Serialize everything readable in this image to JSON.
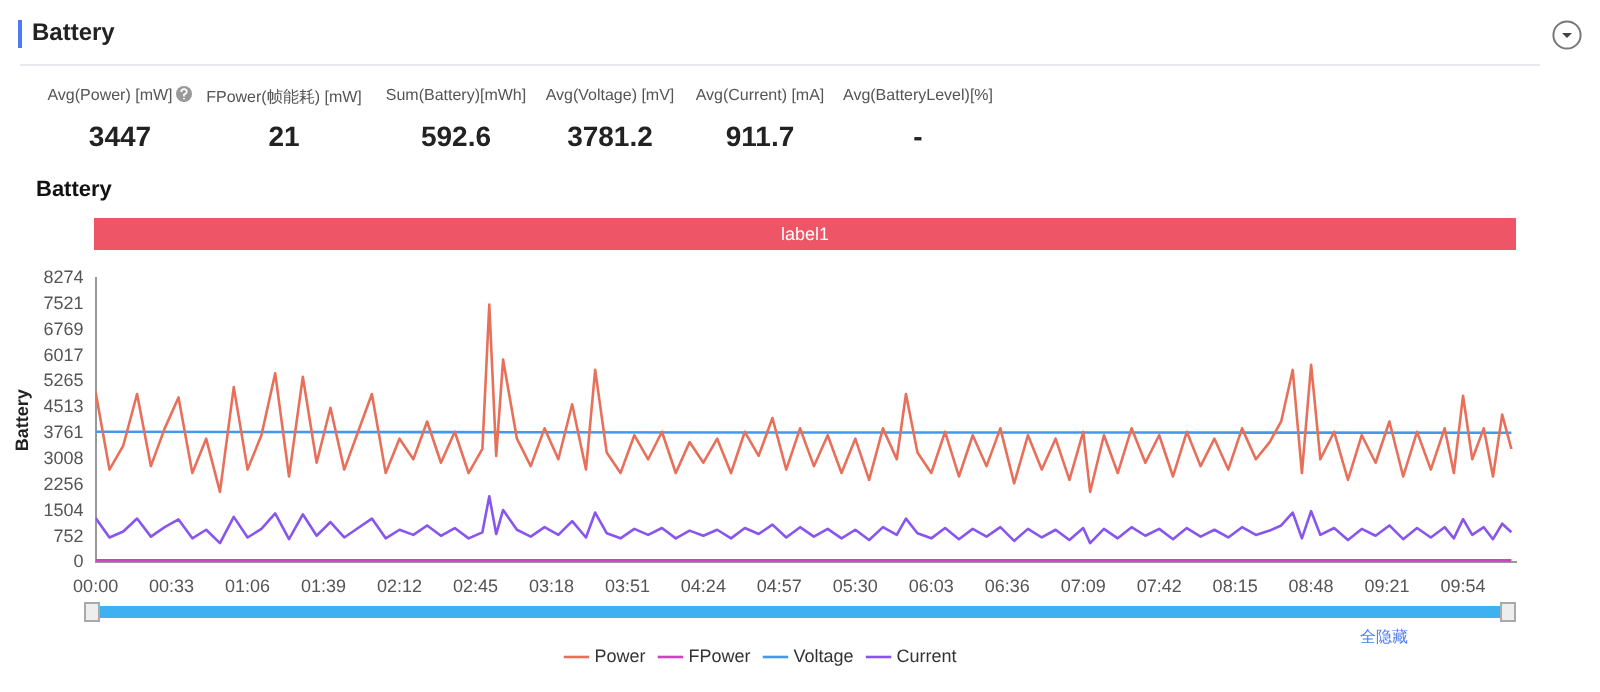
{
  "chart_data": {
    "type": "line",
    "title": "Battery",
    "subtitle": "Battery",
    "ylabel": "Battery",
    "annotations": [
      "Avg(Power) [mW]",
      "3447",
      "FPower(帧能耗) [mW]",
      "21",
      "Sum(Battery)[mWh]",
      "592.6",
      "Avg(Voltage) [mV]",
      "3781.2",
      "Avg(Current) [mA]",
      "911.7",
      "Avg(BatteryLevel)[%]",
      "-",
      "label1",
      "全隐藏"
    ],
    "x": [
      0,
      6,
      12,
      18,
      24,
      30,
      36,
      42,
      48,
      54,
      60,
      66,
      72,
      78,
      84,
      90,
      96,
      102,
      108,
      114,
      120,
      126,
      132,
      138,
      144,
      150,
      156,
      162,
      168,
      171,
      174,
      177,
      183,
      189,
      195,
      201,
      207,
      213,
      217,
      222,
      228,
      234,
      240,
      246,
      252,
      258,
      264,
      270,
      276,
      282,
      288,
      294,
      300,
      306,
      312,
      318,
      324,
      330,
      336,
      342,
      348,
      352,
      357,
      363,
      369,
      375,
      381,
      387,
      393,
      399,
      405,
      411,
      417,
      423,
      429,
      432,
      438,
      444,
      450,
      456,
      462,
      468,
      474,
      480,
      486,
      492,
      498,
      504,
      510,
      515,
      520,
      524,
      528,
      532,
      538,
      544,
      550,
      556,
      562,
      568,
      574,
      580,
      586,
      590,
      594,
      598,
      603,
      607,
      611,
      615
    ],
    "series": [
      {
        "name": "Power",
        "color": "#e8705a",
        "values": [
          4950,
          2700,
          3400,
          4900,
          2800,
          3900,
          4800,
          2600,
          3600,
          2050,
          5100,
          2700,
          3700,
          5500,
          2500,
          5400,
          2900,
          4500,
          2700,
          3800,
          4900,
          2600,
          3600,
          3000,
          4100,
          2900,
          3800,
          2600,
          3300,
          7500,
          3100,
          5900,
          3600,
          2800,
          3900,
          3000,
          4600,
          2700,
          5600,
          3200,
          2600,
          3700,
          3000,
          3800,
          2600,
          3500,
          2900,
          3600,
          2600,
          3800,
          3100,
          4200,
          2700,
          3900,
          2800,
          3700,
          2600,
          3600,
          2400,
          3900,
          3000,
          4900,
          3200,
          2600,
          3800,
          2500,
          3700,
          2800,
          3900,
          2300,
          3700,
          2700,
          3600,
          2400,
          3800,
          2050,
          3700,
          2600,
          3900,
          2900,
          3700,
          2500,
          3800,
          2800,
          3600,
          2700,
          3900,
          3000,
          3500,
          4100,
          5600,
          2600,
          5750,
          3000,
          3800,
          2400,
          3700,
          2900,
          4100,
          2500,
          3800,
          2700,
          3900,
          2600,
          4850,
          3000,
          3900,
          2500,
          4300,
          3300
        ]
      },
      {
        "name": "FPower",
        "color": "#cc44bb",
        "x": [
          0,
          150,
          300,
          450,
          615
        ],
        "values": [
          60,
          60,
          60,
          60,
          60
        ]
      },
      {
        "name": "Voltage",
        "color": "#4499ee",
        "x": [
          0,
          150,
          300,
          450,
          615
        ],
        "values": [
          3800,
          3790,
          3780,
          3780,
          3770
        ]
      },
      {
        "name": "Current",
        "color": "#8855ee",
        "values": [
          1290,
          725,
          900,
          1275,
          750,
          1025,
          1250,
          700,
          950,
          560,
          1325,
          725,
          975,
          1425,
          675,
          1400,
          775,
          1175,
          725,
          1000,
          1275,
          700,
          950,
          800,
          1075,
          775,
          1000,
          700,
          875,
          1925,
          825,
          1525,
          950,
          750,
          1025,
          800,
          1200,
          725,
          1450,
          850,
          700,
          975,
          800,
          1000,
          700,
          925,
          775,
          950,
          700,
          1000,
          825,
          1100,
          725,
          1025,
          750,
          975,
          700,
          950,
          650,
          1025,
          800,
          1275,
          850,
          700,
          1000,
          675,
          975,
          750,
          1025,
          625,
          975,
          725,
          950,
          650,
          1000,
          560,
          975,
          700,
          1025,
          775,
          975,
          675,
          1000,
          750,
          950,
          725,
          1025,
          800,
          925,
          1075,
          1450,
          700,
          1490,
          800,
          1000,
          650,
          975,
          775,
          1075,
          675,
          1000,
          725,
          1025,
          700,
          1260,
          800,
          1025,
          675,
          1125,
          875
        ]
      }
    ],
    "xlim": [
      0,
      617
    ],
    "xticks": [
      {
        "value": 0,
        "label": "00:00"
      },
      {
        "value": 33,
        "label": "00:33"
      },
      {
        "value": 66,
        "label": "01:06"
      },
      {
        "value": 99,
        "label": "01:39"
      },
      {
        "value": 132,
        "label": "02:12"
      },
      {
        "value": 165,
        "label": "02:45"
      },
      {
        "value": 198,
        "label": "03:18"
      },
      {
        "value": 231,
        "label": "03:51"
      },
      {
        "value": 264,
        "label": "04:24"
      },
      {
        "value": 297,
        "label": "04:57"
      },
      {
        "value": 330,
        "label": "05:30"
      },
      {
        "value": 363,
        "label": "06:03"
      },
      {
        "value": 396,
        "label": "06:36"
      },
      {
        "value": 429,
        "label": "07:09"
      },
      {
        "value": 462,
        "label": "07:42"
      },
      {
        "value": 495,
        "label": "08:15"
      },
      {
        "value": 528,
        "label": "08:48"
      },
      {
        "value": 561,
        "label": "09:21"
      },
      {
        "value": 594,
        "label": "09:54"
      }
    ],
    "ylim": [
      0,
      8274
    ],
    "yticks": [
      0,
      752,
      1504,
      2256,
      3008,
      3761,
      4513,
      5265,
      6017,
      6769,
      7521,
      8274
    ],
    "legend": "bottom",
    "marker": "none",
    "line_style": "solid"
  }
}
